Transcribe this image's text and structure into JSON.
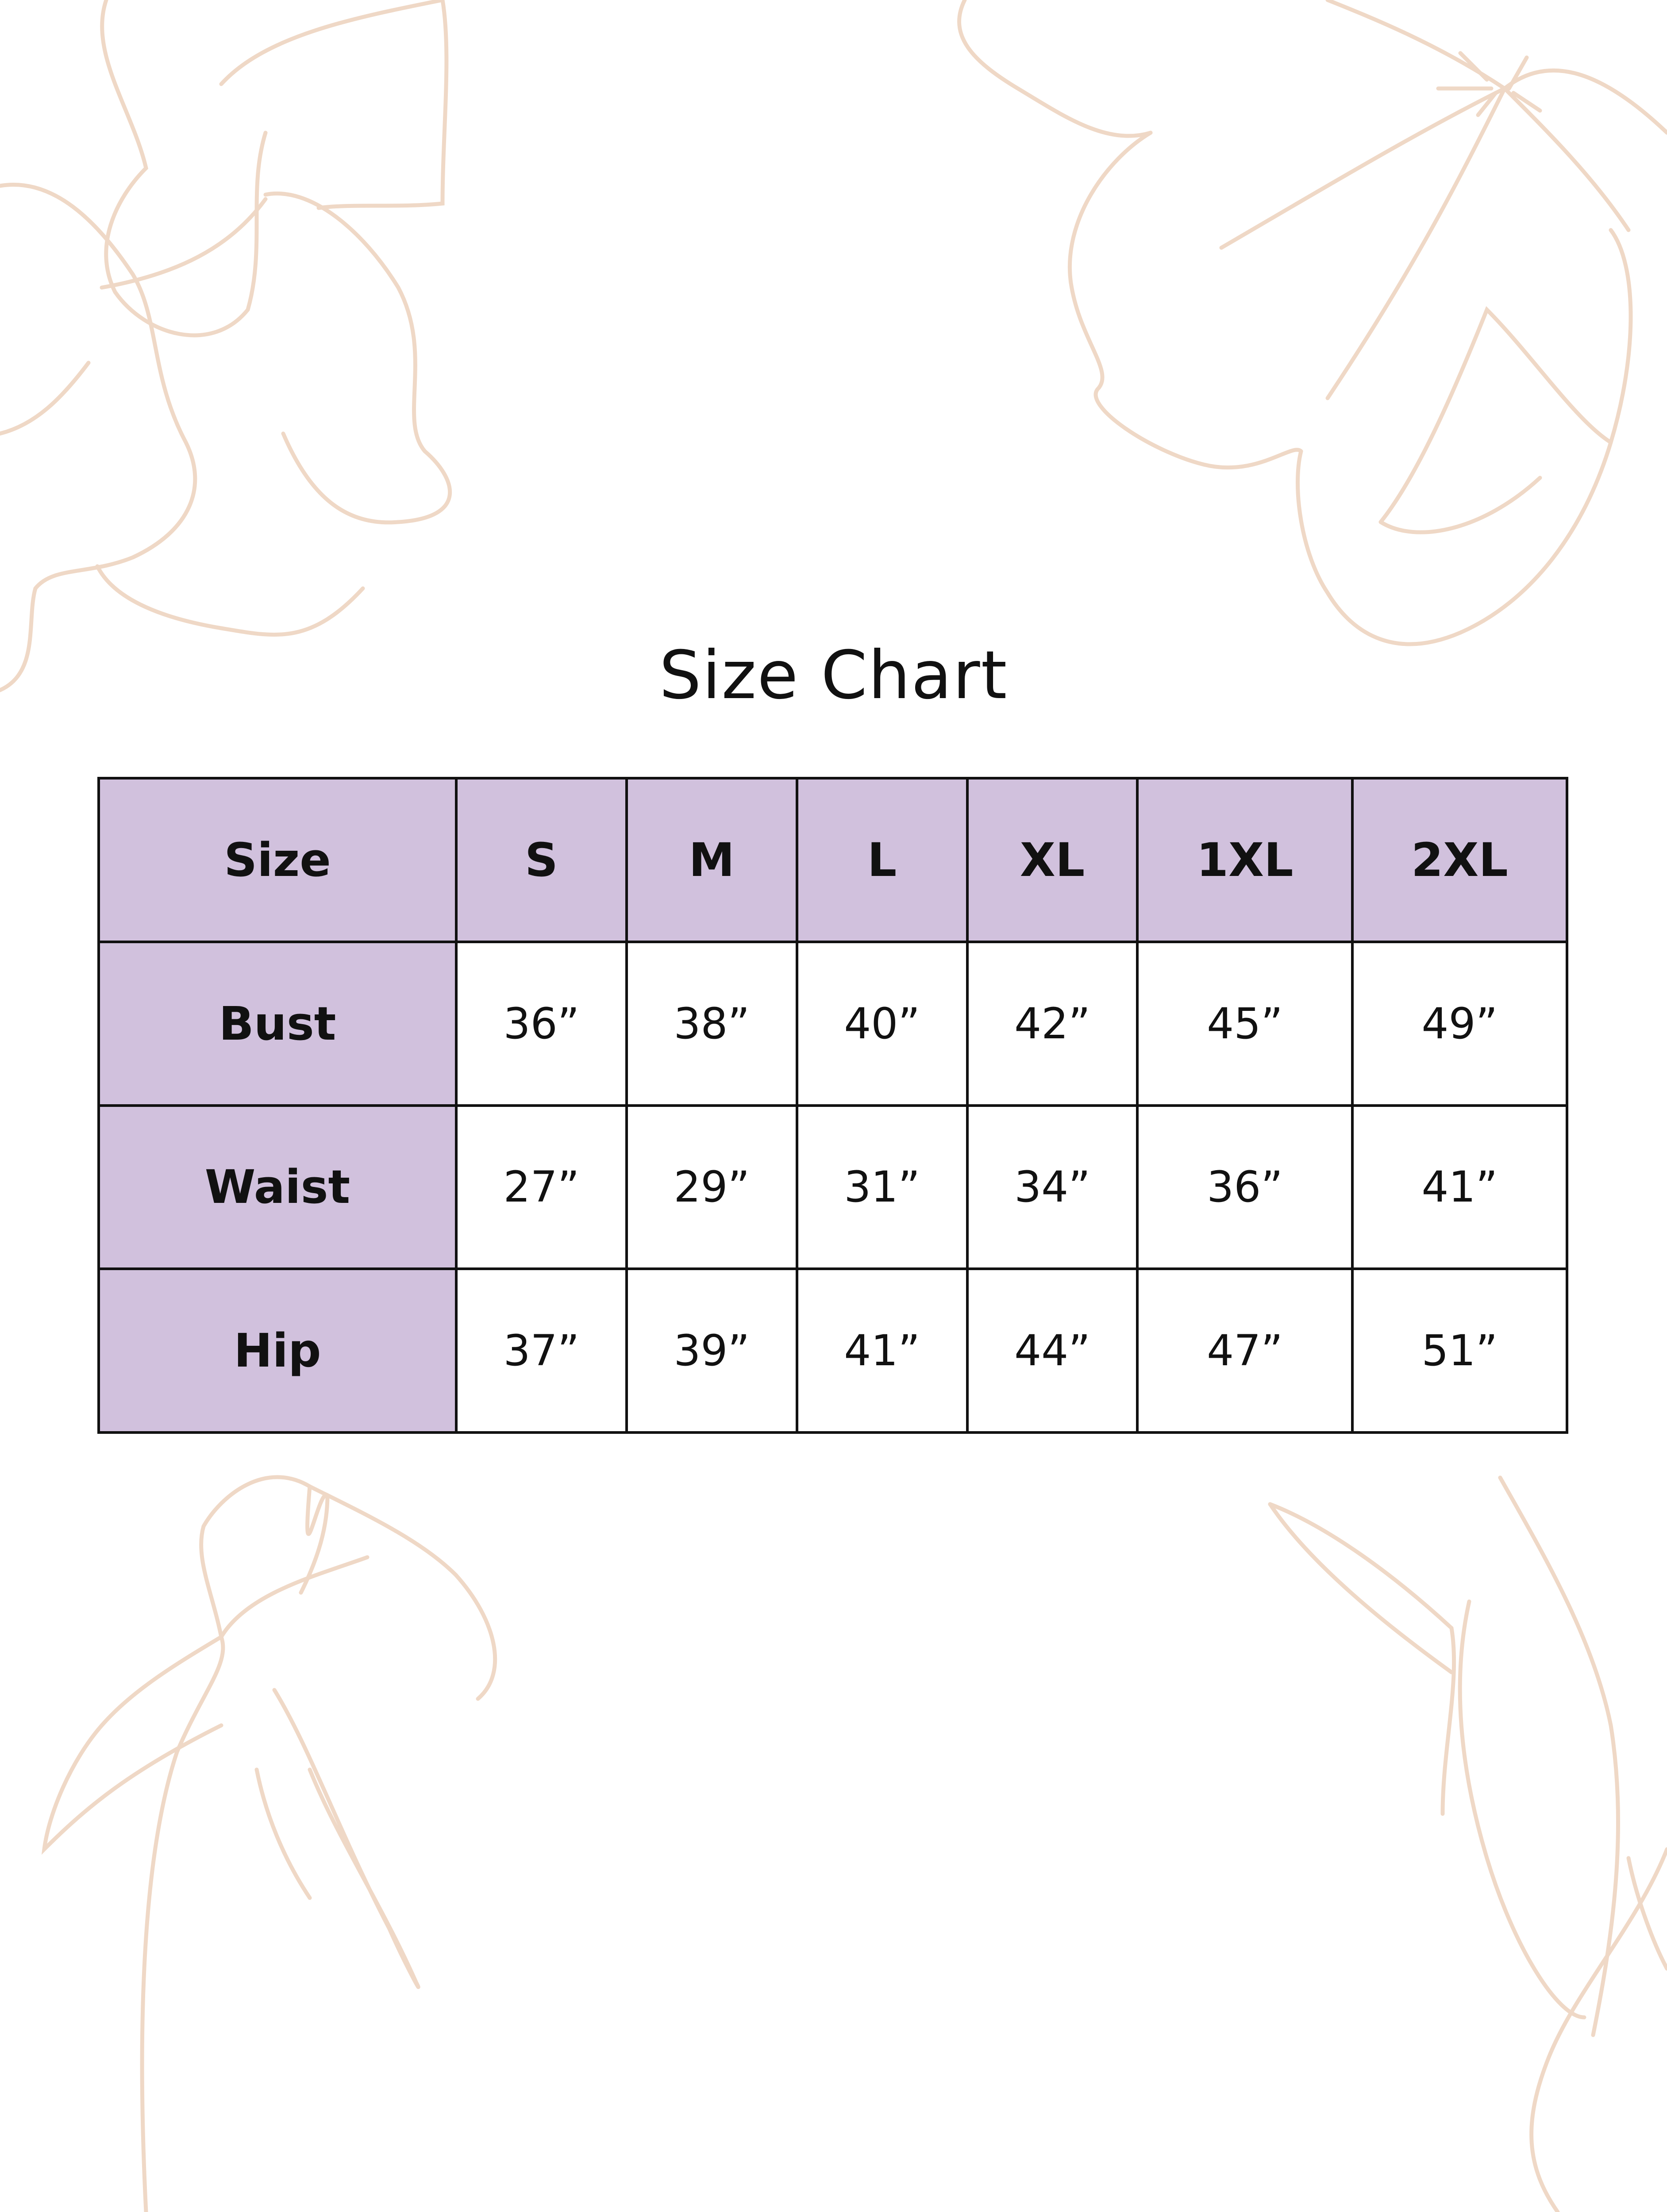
{
  "title": "Size Chart",
  "colors": {
    "header_fill": "#d1c1dd",
    "border": "#111111",
    "floral_line": "#efd8c6"
  },
  "decoration": "floral-line-art",
  "table": {
    "columns": [
      "Size",
      "S",
      "M",
      "L",
      "XL",
      "1XL",
      "2XL"
    ],
    "rows": [
      {
        "label": "Bust",
        "values": [
          "36”",
          "38”",
          "40”",
          "42”",
          "45”",
          "49”"
        ]
      },
      {
        "label": "Waist",
        "values": [
          "27”",
          "29”",
          "31”",
          "34”",
          "36”",
          "41”"
        ]
      },
      {
        "label": "Hip",
        "values": [
          "37”",
          "39”",
          "41”",
          "44”",
          "47”",
          "51”"
        ]
      }
    ]
  }
}
